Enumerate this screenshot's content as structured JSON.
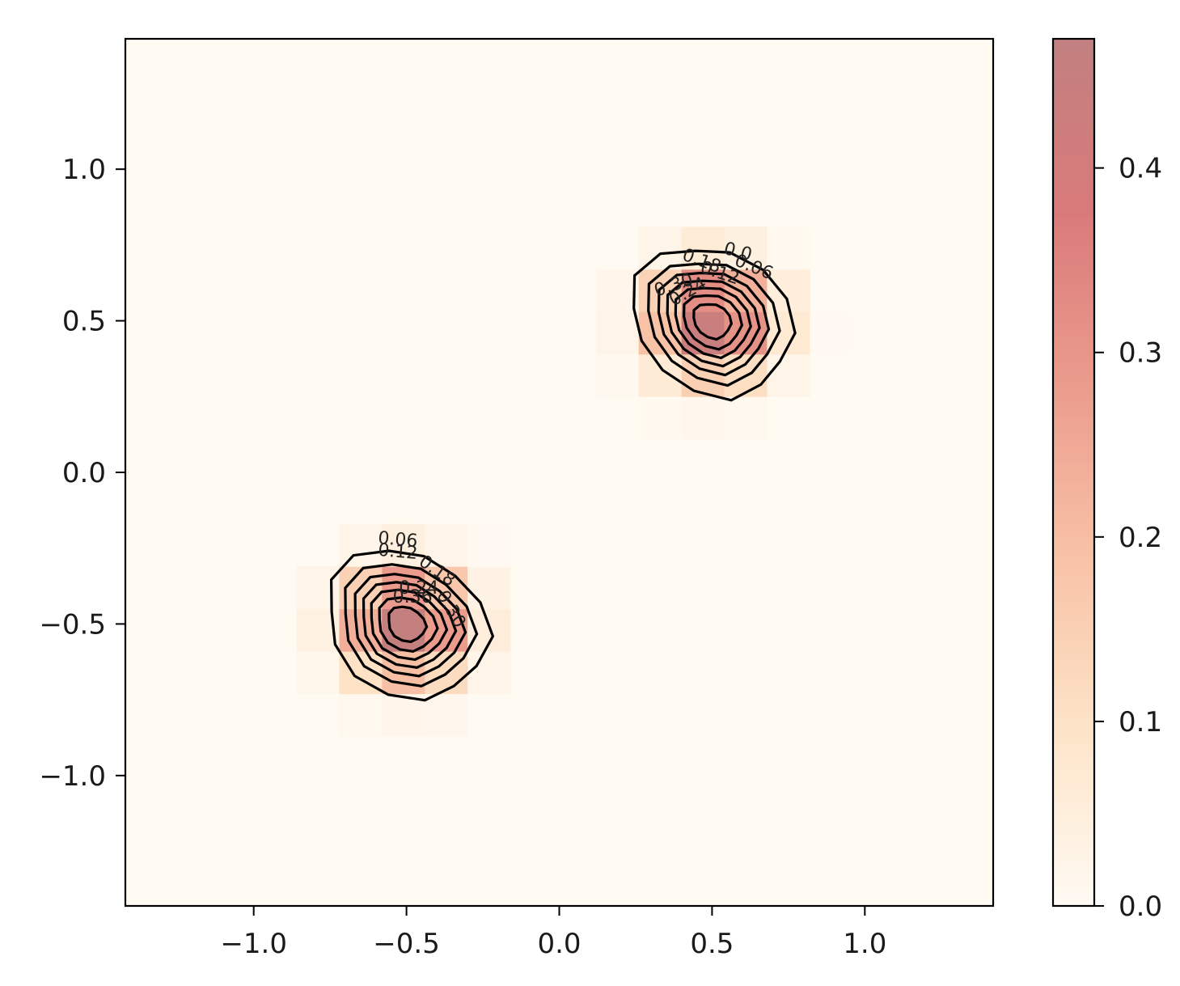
{
  "chart_data": {
    "type": "heatmap",
    "title": "",
    "xlabel": "",
    "ylabel": "",
    "xlim": [
      -1.42,
      1.42
    ],
    "ylim": [
      -1.43,
      1.43
    ],
    "x_ticks": [
      {
        "value": -1.0,
        "label": "−1.0"
      },
      {
        "value": -0.5,
        "label": "−0.5"
      },
      {
        "value": 0.0,
        "label": "0.0"
      },
      {
        "value": 0.5,
        "label": "0.5"
      },
      {
        "value": 1.0,
        "label": "1.0"
      }
    ],
    "y_ticks": [
      {
        "value": -1.0,
        "label": "−1.0"
      },
      {
        "value": -0.5,
        "label": "−0.5"
      },
      {
        "value": 0.0,
        "label": "0.0"
      },
      {
        "value": 0.5,
        "label": "0.5"
      },
      {
        "value": 1.0,
        "label": "1.0"
      }
    ],
    "grid": false,
    "colormap": "OrRd",
    "background_color": "#fffbf3",
    "colorbar": {
      "range": [
        0.0,
        0.47
      ],
      "ticks": [
        {
          "value": 0.0,
          "label": "0.0"
        },
        {
          "value": 0.1,
          "label": "0.1"
        },
        {
          "value": 0.2,
          "label": "0.2"
        },
        {
          "value": 0.3,
          "label": "0.3"
        },
        {
          "value": 0.4,
          "label": "0.4"
        }
      ],
      "stops": [
        "#fffaf3",
        "#fde4c8",
        "#f8c2a6",
        "#eb9c8d",
        "#d97a7a",
        "#c28080"
      ]
    },
    "peaks": [
      {
        "x": 0.5,
        "y": 0.5,
        "max": 0.47,
        "sigma_x": 0.13,
        "sigma_y": 0.12
      },
      {
        "x": -0.5,
        "y": -0.5,
        "max": 0.47,
        "sigma_x": 0.13,
        "sigma_y": 0.12
      }
    ],
    "contour_levels": [
      0.06,
      0.12,
      0.18,
      0.24,
      0.3,
      0.36,
      0.42
    ],
    "contour_labels": [
      {
        "text": "0.06",
        "x": 0.63,
        "y": 0.66,
        "rotation": 22
      },
      {
        "text": "0.0",
        "x": 0.58,
        "y": 0.71,
        "rotation": 15
      },
      {
        "text": "0.12",
        "x": 0.52,
        "y": 0.64,
        "rotation": 18
      },
      {
        "text": "0.18",
        "x": 0.46,
        "y": 0.68,
        "rotation": 20
      },
      {
        "text": "0.30",
        "x": 0.38,
        "y": 0.6,
        "rotation": -18
      },
      {
        "text": "0.24",
        "x": 0.43,
        "y": 0.58,
        "rotation": -30
      },
      {
        "text": "0.06",
        "x": -0.53,
        "y": -0.24,
        "rotation": 5
      },
      {
        "text": "0.12",
        "x": -0.53,
        "y": -0.28,
        "rotation": 5
      },
      {
        "text": "0.18",
        "x": -0.41,
        "y": -0.34,
        "rotation": 35
      },
      {
        "text": "0.24",
        "x": -0.46,
        "y": -0.4,
        "rotation": 0
      },
      {
        "text": "0.36",
        "x": -0.48,
        "y": -0.43,
        "rotation": 0
      },
      {
        "text": "0.30",
        "x": -0.37,
        "y": -0.46,
        "rotation": 60
      }
    ]
  }
}
